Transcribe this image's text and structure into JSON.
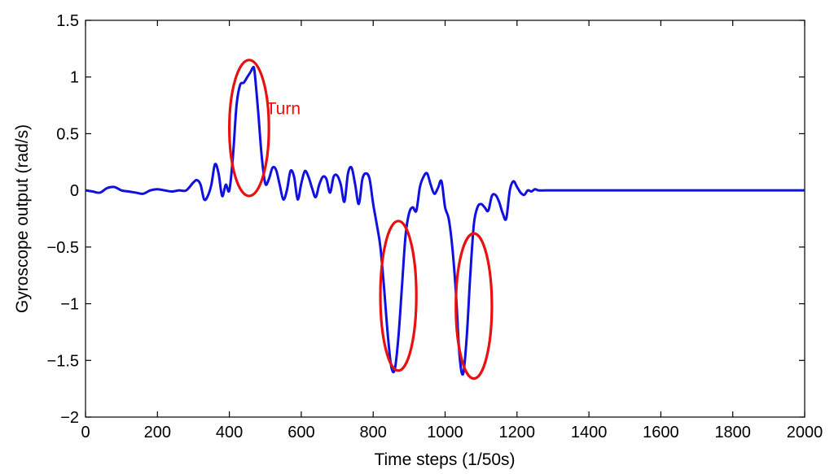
{
  "chart_data": {
    "type": "line",
    "title": "",
    "xlabel": "Time steps (1/50s)",
    "ylabel": "Gyroscope output (rad/s)",
    "xlim": [
      0,
      2000
    ],
    "ylim": [
      -2,
      1.5
    ],
    "xticks": [
      0,
      200,
      400,
      600,
      800,
      1000,
      1200,
      1400,
      1600,
      1800,
      2000
    ],
    "yticks": [
      -2,
      -1.5,
      -1,
      -0.5,
      0,
      0.5,
      1,
      1.5
    ],
    "ytick_labels": [
      "−2",
      "−1.5",
      "−1",
      "−0.5",
      "0",
      "0.5",
      "1",
      "1.5"
    ],
    "grid": false,
    "colors": {
      "series": "#1010e0",
      "annotation": "#e81010",
      "axes": "#000000"
    },
    "series": [
      {
        "x": [
          0,
          20,
          40,
          60,
          80,
          100,
          120,
          140,
          160,
          180,
          200,
          220,
          240,
          260,
          280,
          300,
          310,
          320,
          330,
          340,
          350,
          360,
          370,
          380,
          390,
          400,
          410,
          420,
          430,
          440,
          450,
          460,
          465,
          470,
          480,
          490,
          500,
          510,
          520,
          530,
          540,
          550,
          560,
          570,
          580,
          590,
          600,
          610,
          620,
          630,
          640,
          650,
          660,
          670,
          680,
          690,
          700,
          710,
          720,
          730,
          740,
          750,
          760,
          770,
          780,
          790,
          800,
          810,
          820,
          830,
          840,
          850,
          860,
          870,
          880,
          890,
          900,
          910,
          920,
          930,
          940,
          950,
          960,
          970,
          980,
          990,
          1000,
          1010,
          1020,
          1030,
          1040,
          1050,
          1060,
          1070,
          1080,
          1090,
          1100,
          1110,
          1120,
          1130,
          1140,
          1150,
          1160,
          1170,
          1180,
          1190,
          1200,
          1210,
          1220,
          1230,
          1240,
          1250,
          1260,
          1280,
          1300,
          1350,
          1400,
          1500,
          1600,
          1700,
          1800,
          1900,
          2000
        ],
        "values": [
          0.0,
          -0.01,
          -0.02,
          0.02,
          0.03,
          0.0,
          -0.01,
          -0.02,
          -0.03,
          0.0,
          0.01,
          0.0,
          -0.01,
          0.0,
          0.0,
          0.07,
          0.09,
          0.05,
          -0.08,
          -0.05,
          0.05,
          0.23,
          0.15,
          -0.05,
          0.05,
          0.0,
          0.3,
          0.75,
          0.93,
          0.95,
          1.0,
          1.05,
          1.08,
          1.05,
          0.7,
          0.3,
          0.06,
          0.1,
          0.2,
          0.18,
          0.05,
          -0.08,
          0.0,
          0.17,
          0.12,
          -0.08,
          0.06,
          0.17,
          0.12,
          0.02,
          -0.06,
          0.05,
          0.12,
          0.1,
          -0.02,
          0.12,
          0.13,
          0.05,
          -0.1,
          0.15,
          0.2,
          0.05,
          -0.12,
          0.1,
          0.15,
          0.1,
          -0.12,
          -0.3,
          -0.5,
          -0.85,
          -1.25,
          -1.55,
          -1.58,
          -1.3,
          -0.85,
          -0.4,
          -0.2,
          -0.15,
          -0.18,
          0.03,
          0.12,
          0.15,
          0.05,
          -0.03,
          0.02,
          0.08,
          -0.15,
          -0.25,
          -0.5,
          -0.9,
          -1.45,
          -1.62,
          -1.3,
          -0.75,
          -0.3,
          -0.15,
          -0.12,
          -0.15,
          -0.18,
          -0.05,
          -0.04,
          -0.1,
          -0.2,
          -0.25,
          0.0,
          0.08,
          0.03,
          -0.02,
          -0.04,
          0.0,
          -0.01,
          0.01,
          0.0,
          0.0,
          0.0,
          0.0,
          0.0,
          0.0,
          0.0,
          0.0,
          0.0,
          0.0,
          0.0
        ]
      }
    ],
    "annotations": [
      {
        "text": "Turn",
        "x": 550,
        "y": 0.67
      }
    ],
    "ellipses": [
      {
        "cx": 455,
        "cy": 0.55,
        "rx": 55,
        "ry": 0.6
      },
      {
        "cx": 870,
        "cy": -0.93,
        "rx": 50,
        "ry": 0.66
      },
      {
        "cx": 1080,
        "cy": -1.02,
        "rx": 50,
        "ry": 0.64
      }
    ]
  }
}
